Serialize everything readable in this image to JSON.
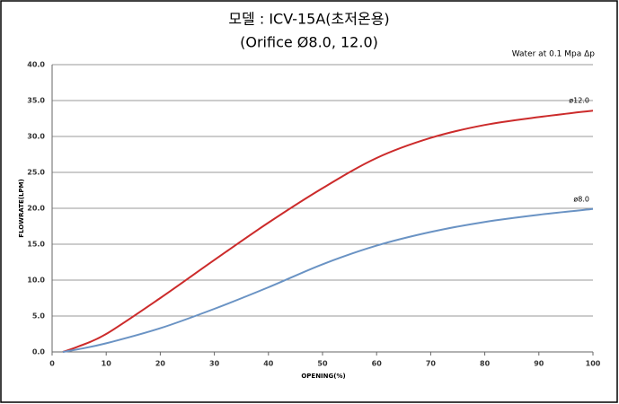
{
  "chart_data": {
    "type": "line",
    "title": "모델 : ICV-15A(초저온용)",
    "subtitle": "(Orifice Ø8.0, 12.0)",
    "annotation": "Water at 0.1 Mpa Δp",
    "x_label": "OPENING(%)",
    "y_label": "FLOWRATE(LPM)",
    "x": [
      2,
      5,
      10,
      20,
      30,
      40,
      50,
      60,
      70,
      80,
      90,
      100
    ],
    "series": [
      {
        "name": "ø12.0",
        "color": "#cc2b2b",
        "values": [
          0,
          0.8,
          2.5,
          7.5,
          12.8,
          18,
          22.8,
          27,
          29.8,
          31.6,
          32.7,
          33.6
        ]
      },
      {
        "name": "ø8.0",
        "color": "#6a93c4",
        "values": [
          0,
          0.4,
          1.2,
          3.3,
          6,
          9,
          12.2,
          14.8,
          16.7,
          18.1,
          19.1,
          19.9
        ]
      }
    ],
    "xlim": [
      0,
      100
    ],
    "xticks": [
      0,
      10,
      20,
      30,
      40,
      50,
      60,
      70,
      80,
      90,
      100
    ],
    "ylim": [
      0,
      40
    ],
    "yticks": [
      {
        "value": 0,
        "label": "0.0"
      },
      {
        "value": 5,
        "label": "5.0"
      },
      {
        "value": 10,
        "label": "10.0"
      },
      {
        "value": 15,
        "label": "15.0"
      },
      {
        "value": 20,
        "label": "20.0"
      },
      {
        "value": 25,
        "label": "25.0"
      },
      {
        "value": 30,
        "label": "30.0"
      },
      {
        "value": 35,
        "label": "35.0"
      },
      {
        "value": 40,
        "label": "40.0"
      }
    ],
    "grid": true
  }
}
